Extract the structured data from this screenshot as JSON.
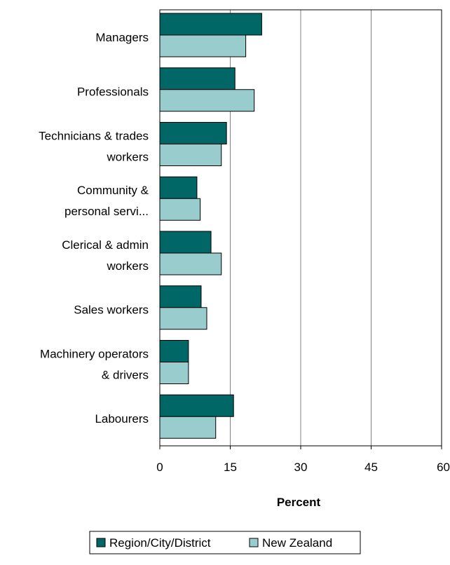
{
  "chart_data": {
    "type": "bar",
    "orientation": "horizontal",
    "categories": [
      [
        "Managers"
      ],
      [
        "Professionals"
      ],
      [
        "Technicians & trades",
        "workers"
      ],
      [
        "Community &",
        "personal servi..."
      ],
      [
        "Clerical & admin",
        "workers"
      ],
      [
        "Sales workers"
      ],
      [
        "Machinery operators",
        "& drivers"
      ],
      [
        "Labourers"
      ]
    ],
    "series": [
      {
        "name": "Region/City/District",
        "color": "#006666",
        "values": [
          21.7,
          16.0,
          14.2,
          7.9,
          10.9,
          8.8,
          6.1,
          15.7
        ]
      },
      {
        "name": "New Zealand",
        "color": "#99CCCC",
        "values": [
          18.3,
          20.1,
          13.1,
          8.6,
          13.1,
          10.0,
          6.1,
          11.9
        ]
      }
    ],
    "xlabel": "Percent",
    "xlim": [
      0,
      60
    ],
    "xticks": [
      0,
      15,
      30,
      45,
      60
    ],
    "grid": "vertical",
    "legend": "bottom"
  }
}
